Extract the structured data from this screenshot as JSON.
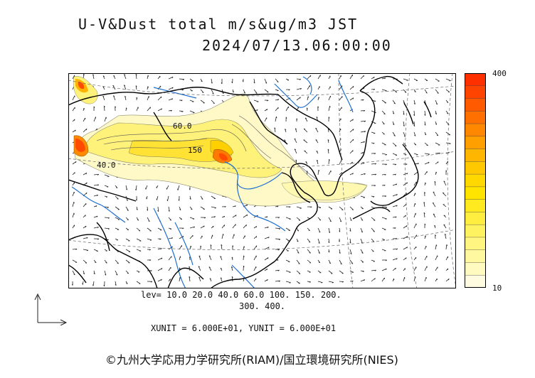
{
  "header": {
    "title": "U-V&Dust total m/s&ug/m3 JST",
    "datetime": "2024/07/13.06:00:00"
  },
  "colorbar": {
    "max_label": "400",
    "min_label": "10",
    "colors": [
      "#fffbe0",
      "#fffac0",
      "#fff8a0",
      "#fff580",
      "#fff260",
      "#ffee40",
      "#ffea20",
      "#ffe400",
      "#ffd800",
      "#ffc800",
      "#ffb600",
      "#ffa000",
      "#ff8800",
      "#ff7000",
      "#ff5a00",
      "#ff4400",
      "#ff3000"
    ]
  },
  "map": {
    "contour_labels": [
      "60.0",
      "150",
      "40.0"
    ]
  },
  "legend": {
    "lev_line1": "lev= 10.0 20.0 40.0 60.0 100. 150. 200.",
    "lev_line2": "300. 400.",
    "units": "XUNIT = 6.000E+01, YUNIT = 6.000E+01"
  },
  "footer": {
    "credit": "©九州大学応用力学研究所(RIAM)/国立環境研究所(NIES)"
  }
}
